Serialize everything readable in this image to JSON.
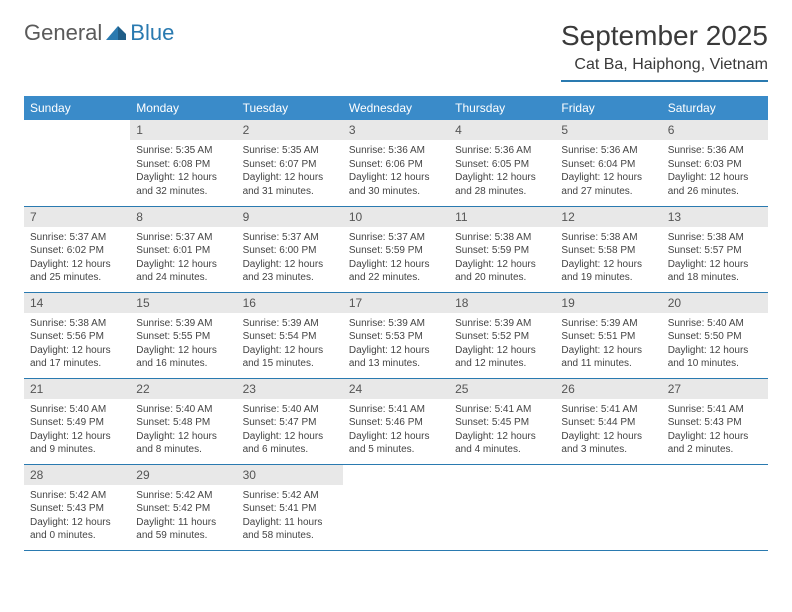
{
  "logo": {
    "text1": "General",
    "text2": "Blue"
  },
  "title": {
    "month": "September 2025",
    "location": "Cat Ba, Haiphong, Vietnam"
  },
  "colors": {
    "header_bg": "#3a8bc9",
    "accent": "#2a7ab0",
    "daynum_bg": "#e8e8e8",
    "text": "#333333"
  },
  "weekdays": [
    "Sunday",
    "Monday",
    "Tuesday",
    "Wednesday",
    "Thursday",
    "Friday",
    "Saturday"
  ],
  "weeks": [
    [
      null,
      {
        "n": "1",
        "sunrise": "5:35 AM",
        "sunset": "6:08 PM",
        "daylight": "12 hours and 32 minutes."
      },
      {
        "n": "2",
        "sunrise": "5:35 AM",
        "sunset": "6:07 PM",
        "daylight": "12 hours and 31 minutes."
      },
      {
        "n": "3",
        "sunrise": "5:36 AM",
        "sunset": "6:06 PM",
        "daylight": "12 hours and 30 minutes."
      },
      {
        "n": "4",
        "sunrise": "5:36 AM",
        "sunset": "6:05 PM",
        "daylight": "12 hours and 28 minutes."
      },
      {
        "n": "5",
        "sunrise": "5:36 AM",
        "sunset": "6:04 PM",
        "daylight": "12 hours and 27 minutes."
      },
      {
        "n": "6",
        "sunrise": "5:36 AM",
        "sunset": "6:03 PM",
        "daylight": "12 hours and 26 minutes."
      }
    ],
    [
      {
        "n": "7",
        "sunrise": "5:37 AM",
        "sunset": "6:02 PM",
        "daylight": "12 hours and 25 minutes."
      },
      {
        "n": "8",
        "sunrise": "5:37 AM",
        "sunset": "6:01 PM",
        "daylight": "12 hours and 24 minutes."
      },
      {
        "n": "9",
        "sunrise": "5:37 AM",
        "sunset": "6:00 PM",
        "daylight": "12 hours and 23 minutes."
      },
      {
        "n": "10",
        "sunrise": "5:37 AM",
        "sunset": "5:59 PM",
        "daylight": "12 hours and 22 minutes."
      },
      {
        "n": "11",
        "sunrise": "5:38 AM",
        "sunset": "5:59 PM",
        "daylight": "12 hours and 20 minutes."
      },
      {
        "n": "12",
        "sunrise": "5:38 AM",
        "sunset": "5:58 PM",
        "daylight": "12 hours and 19 minutes."
      },
      {
        "n": "13",
        "sunrise": "5:38 AM",
        "sunset": "5:57 PM",
        "daylight": "12 hours and 18 minutes."
      }
    ],
    [
      {
        "n": "14",
        "sunrise": "5:38 AM",
        "sunset": "5:56 PM",
        "daylight": "12 hours and 17 minutes."
      },
      {
        "n": "15",
        "sunrise": "5:39 AM",
        "sunset": "5:55 PM",
        "daylight": "12 hours and 16 minutes."
      },
      {
        "n": "16",
        "sunrise": "5:39 AM",
        "sunset": "5:54 PM",
        "daylight": "12 hours and 15 minutes."
      },
      {
        "n": "17",
        "sunrise": "5:39 AM",
        "sunset": "5:53 PM",
        "daylight": "12 hours and 13 minutes."
      },
      {
        "n": "18",
        "sunrise": "5:39 AM",
        "sunset": "5:52 PM",
        "daylight": "12 hours and 12 minutes."
      },
      {
        "n": "19",
        "sunrise": "5:39 AM",
        "sunset": "5:51 PM",
        "daylight": "12 hours and 11 minutes."
      },
      {
        "n": "20",
        "sunrise": "5:40 AM",
        "sunset": "5:50 PM",
        "daylight": "12 hours and 10 minutes."
      }
    ],
    [
      {
        "n": "21",
        "sunrise": "5:40 AM",
        "sunset": "5:49 PM",
        "daylight": "12 hours and 9 minutes."
      },
      {
        "n": "22",
        "sunrise": "5:40 AM",
        "sunset": "5:48 PM",
        "daylight": "12 hours and 8 minutes."
      },
      {
        "n": "23",
        "sunrise": "5:40 AM",
        "sunset": "5:47 PM",
        "daylight": "12 hours and 6 minutes."
      },
      {
        "n": "24",
        "sunrise": "5:41 AM",
        "sunset": "5:46 PM",
        "daylight": "12 hours and 5 minutes."
      },
      {
        "n": "25",
        "sunrise": "5:41 AM",
        "sunset": "5:45 PM",
        "daylight": "12 hours and 4 minutes."
      },
      {
        "n": "26",
        "sunrise": "5:41 AM",
        "sunset": "5:44 PM",
        "daylight": "12 hours and 3 minutes."
      },
      {
        "n": "27",
        "sunrise": "5:41 AM",
        "sunset": "5:43 PM",
        "daylight": "12 hours and 2 minutes."
      }
    ],
    [
      {
        "n": "28",
        "sunrise": "5:42 AM",
        "sunset": "5:43 PM",
        "daylight": "12 hours and 0 minutes."
      },
      {
        "n": "29",
        "sunrise": "5:42 AM",
        "sunset": "5:42 PM",
        "daylight": "11 hours and 59 minutes."
      },
      {
        "n": "30",
        "sunrise": "5:42 AM",
        "sunset": "5:41 PM",
        "daylight": "11 hours and 58 minutes."
      },
      null,
      null,
      null,
      null
    ]
  ],
  "labels": {
    "sunrise": "Sunrise:",
    "sunset": "Sunset:",
    "daylight": "Daylight:"
  }
}
